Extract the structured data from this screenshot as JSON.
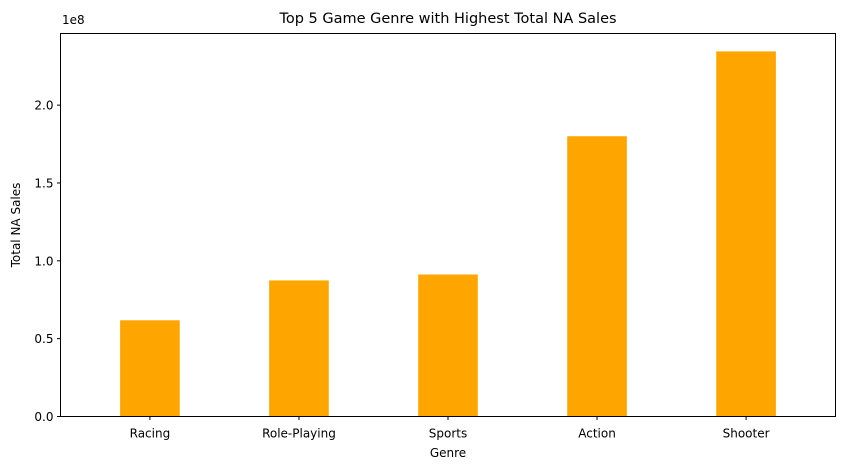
{
  "chart_data": {
    "type": "bar",
    "title": "Top 5 Game Genre with Highest Total NA Sales",
    "xlabel": "Genre",
    "ylabel": "Total NA Sales",
    "y_offset_text": "1e8",
    "categories": [
      "Racing",
      "Role-Playing",
      "Sports",
      "Action",
      "Shooter"
    ],
    "values": [
      61800000,
      87400000,
      91200000,
      180000000,
      234500000
    ],
    "ylim": [
      0,
      246000000
    ],
    "yticks": [
      0,
      50000000,
      100000000,
      150000000,
      200000000
    ],
    "ytick_labels": [
      "0.0",
      "0.5",
      "1.0",
      "1.5",
      "2.0"
    ],
    "bar_color": "#ffa500",
    "grid": false,
    "legend": "none"
  }
}
